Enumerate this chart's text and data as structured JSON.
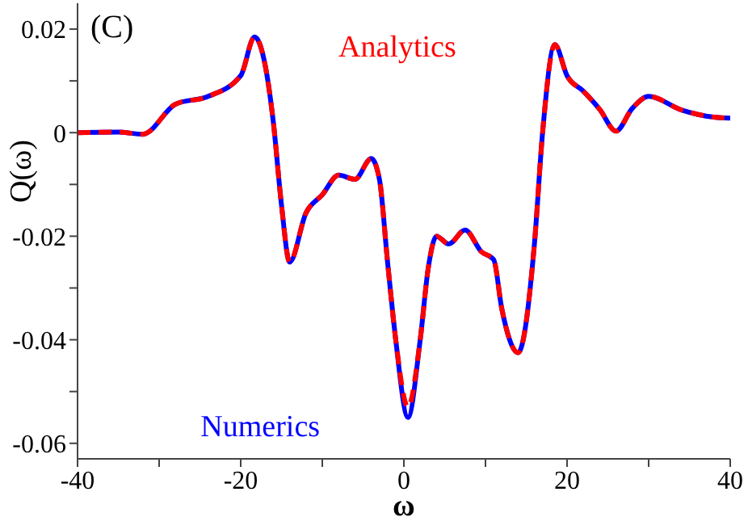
{
  "chart_data": {
    "type": "line",
    "xlabel": "ω",
    "ylabel": "Q(ω)",
    "annotations": [
      "(C)"
    ],
    "x": [
      -40,
      -35,
      -32,
      -28,
      -24,
      -20,
      -18.3,
      -17,
      -16,
      -15,
      -14,
      -12,
      -10,
      -8,
      -6,
      -4,
      -3,
      -2,
      -1,
      0.5,
      2,
      3,
      4,
      5.5,
      7.5,
      9.5,
      11,
      12,
      14,
      16,
      17,
      18.5,
      20,
      22,
      24,
      26,
      28,
      30,
      34,
      38,
      40
    ],
    "series": [
      {
        "name": "Numerics",
        "color": "#0000ff",
        "line_style": "solid",
        "values": [
          0,
          0.0001,
          -0.0003,
          0.0055,
          0.007,
          0.011,
          0.0185,
          0.013,
          0.002,
          -0.014,
          -0.025,
          -0.0155,
          -0.012,
          -0.0082,
          -0.009,
          -0.005,
          -0.009,
          -0.025,
          -0.04,
          -0.055,
          -0.04,
          -0.026,
          -0.02,
          -0.0215,
          -0.0188,
          -0.023,
          -0.0245,
          -0.034,
          -0.0425,
          -0.0215,
          0,
          0.017,
          0.011,
          0.008,
          0.0045,
          0.0003,
          0.0047,
          0.007,
          0.0044,
          0.003,
          0.0028
        ]
      },
      {
        "name": "Analytics",
        "color": "#ff0000",
        "line_style": "dashed",
        "values": [
          0,
          0.0001,
          -0.0003,
          0.0055,
          0.007,
          0.011,
          0.0185,
          0.013,
          0.002,
          -0.014,
          -0.025,
          -0.0155,
          -0.012,
          -0.0082,
          -0.009,
          -0.005,
          -0.009,
          -0.025,
          -0.04,
          -0.053,
          -0.04,
          -0.026,
          -0.02,
          -0.0215,
          -0.0188,
          -0.023,
          -0.0245,
          -0.034,
          -0.0425,
          -0.0215,
          0,
          0.017,
          0.011,
          0.008,
          0.0045,
          0.0003,
          0.0047,
          0.007,
          0.0044,
          0.003,
          0.0028
        ]
      }
    ],
    "xlim": [
      -40,
      40
    ],
    "xticks": [
      -40,
      {
        "value": -30,
        "label": null
      },
      -20,
      {
        "value": -10,
        "label": null
      },
      0,
      {
        "value": 10,
        "label": null
      },
      20,
      {
        "value": 30,
        "label": null
      },
      40
    ],
    "ylim": [
      -0.063,
      0.025
    ],
    "yticks": [
      -0.06,
      {
        "value": -0.05,
        "label": null
      },
      -0.04,
      {
        "value": -0.03,
        "label": null
      },
      -0.02,
      {
        "value": -0.01,
        "label": null
      },
      0,
      {
        "value": 0.01,
        "label": null
      },
      0.02
    ],
    "grid": false,
    "legend": false,
    "marker": "none"
  }
}
